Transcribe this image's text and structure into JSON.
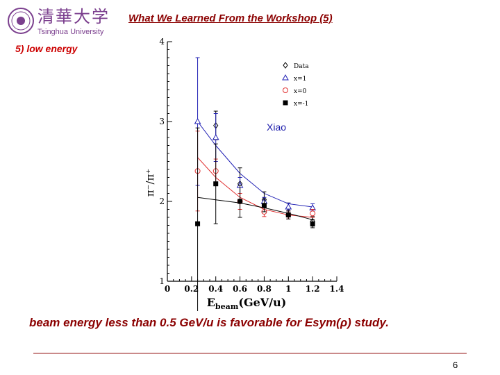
{
  "header": {
    "logo_cn": "清華大学",
    "logo_en": "Tsinghua University",
    "title": "What We Learned From the Workshop (5)"
  },
  "section": {
    "subtitle": "5) low energy"
  },
  "figure": {
    "author": "Xiao",
    "y_axis_label": "π⁻/π⁺",
    "x_axis_label_main": "E",
    "x_axis_label_sub": "beam",
    "x_axis_label_unit": "(GeV/u)"
  },
  "chart_data": {
    "type": "scatter",
    "xlim": [
      0,
      1.4
    ],
    "ylim": [
      1,
      4
    ],
    "x_ticks": [
      "0",
      "0.2",
      "0.4",
      "0.6",
      "0.8",
      "1",
      "1.2",
      "1.4"
    ],
    "y_ticks": [
      "1",
      "2",
      "3",
      "4"
    ],
    "legend_position": "top-right",
    "series": [
      {
        "name": "Data",
        "marker": "open-diamond",
        "color": "#000000",
        "x": [
          0.4,
          0.6,
          0.8,
          1.0,
          1.2
        ],
        "y": [
          2.95,
          2.22,
          2.02,
          1.92,
          1.75
        ],
        "err": [
          0.18,
          0.2,
          0.1,
          0.06,
          0.06
        ]
      },
      {
        "name": "x=1",
        "marker": "open-triangle",
        "color": "#1f1fb4",
        "x": [
          0.25,
          0.4,
          0.6,
          0.8,
          1.0,
          1.2
        ],
        "y": [
          3.0,
          2.8,
          2.2,
          2.0,
          1.93,
          1.92
        ],
        "err": [
          0.8,
          0.3,
          0.1,
          0.05,
          0.05,
          0.05
        ],
        "fit": [
          [
            0.25,
            3.0
          ],
          [
            0.4,
            2.7
          ],
          [
            0.6,
            2.35
          ],
          [
            0.8,
            2.1
          ],
          [
            1.0,
            1.97
          ],
          [
            1.2,
            1.93
          ]
        ]
      },
      {
        "name": "x=0",
        "marker": "open-circle",
        "color": "#e03030",
        "x": [
          0.25,
          0.4,
          0.6,
          0.8,
          1.0,
          1.2
        ],
        "y": [
          2.38,
          2.38,
          2.0,
          1.87,
          1.83,
          1.85
        ],
        "err": [
          0.5,
          0.15,
          0.1,
          0.06,
          0.05,
          0.05
        ],
        "fit": [
          [
            0.25,
            2.55
          ],
          [
            0.4,
            2.3
          ],
          [
            0.6,
            2.05
          ],
          [
            0.8,
            1.9
          ],
          [
            1.0,
            1.83
          ],
          [
            1.2,
            1.8
          ]
        ]
      },
      {
        "name": "x=-1",
        "marker": "filled-square",
        "color": "#000000",
        "x": [
          0.25,
          0.4,
          0.6,
          0.8,
          1.0,
          1.2
        ],
        "y": [
          1.72,
          2.22,
          2.0,
          1.95,
          1.83,
          1.72
        ],
        "err": [
          1.2,
          0.5,
          0.2,
          0.08,
          0.05,
          0.05
        ],
        "fit": [
          [
            0.25,
            2.05
          ],
          [
            0.4,
            2.02
          ],
          [
            0.6,
            1.98
          ],
          [
            0.8,
            1.92
          ],
          [
            1.0,
            1.85
          ],
          [
            1.2,
            1.77
          ]
        ]
      }
    ]
  },
  "conclusion": "beam energy less than 0.5 GeV/u  is favorable for Esym(ρ) study.",
  "footer": {
    "page_number": "6"
  }
}
